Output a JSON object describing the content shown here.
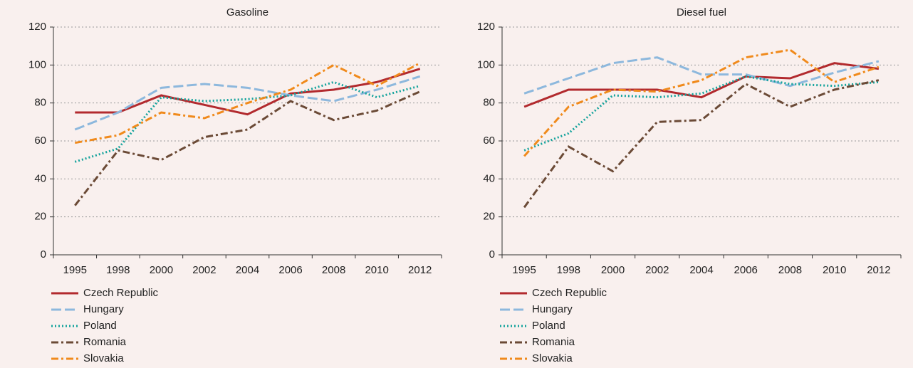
{
  "chart_data": [
    {
      "type": "line",
      "title": "Gasoline",
      "categories": [
        "1995",
        "1998",
        "2000",
        "2002",
        "2004",
        "2006",
        "2008",
        "2010",
        "2012"
      ],
      "ylim": [
        0,
        120
      ],
      "yticks": [
        0,
        20,
        40,
        60,
        80,
        100,
        120
      ],
      "grid": true,
      "series": [
        {
          "name": "Czech Republic",
          "color": "#b22a2e",
          "dash": "solid",
          "values": [
            75,
            75,
            84,
            79,
            74,
            85,
            87,
            91,
            98
          ]
        },
        {
          "name": "Hungary",
          "color": "#8db8dd",
          "dash": "dashed",
          "values": [
            66,
            75,
            88,
            90,
            88,
            84,
            81,
            87,
            94
          ]
        },
        {
          "name": "Poland",
          "color": "#14a39c",
          "dash": "dotted",
          "values": [
            49,
            56,
            83,
            81,
            82,
            84,
            91,
            83,
            89
          ]
        },
        {
          "name": "Romania",
          "color": "#6b4a36",
          "dash": "dashdot",
          "values": [
            26,
            55,
            50,
            62,
            66,
            81,
            71,
            76,
            86
          ]
        },
        {
          "name": "Slovakia",
          "color": "#f08a1c",
          "dash": "dashdot",
          "values": [
            59,
            63,
            75,
            72,
            80,
            87,
            100,
            89,
            101
          ]
        }
      ]
    },
    {
      "type": "line",
      "title": "Diesel fuel",
      "categories": [
        "1995",
        "1998",
        "2000",
        "2002",
        "2004",
        "2006",
        "2008",
        "2010",
        "2012"
      ],
      "ylim": [
        0,
        120
      ],
      "yticks": [
        0,
        20,
        40,
        60,
        80,
        100,
        120
      ],
      "grid": true,
      "series": [
        {
          "name": "Czech Republic",
          "color": "#b22a2e",
          "dash": "solid",
          "values": [
            78,
            87,
            87,
            87,
            83,
            94,
            93,
            101,
            98
          ]
        },
        {
          "name": "Hungary",
          "color": "#8db8dd",
          "dash": "dashed",
          "values": [
            85,
            93,
            101,
            104,
            95,
            95,
            89,
            96,
            102
          ]
        },
        {
          "name": "Poland",
          "color": "#14a39c",
          "dash": "dotted",
          "values": [
            55,
            64,
            84,
            83,
            85,
            94,
            90,
            89,
            91
          ]
        },
        {
          "name": "Romania",
          "color": "#6b4a36",
          "dash": "dashdot",
          "values": [
            25,
            57,
            44,
            70,
            71,
            90,
            78,
            87,
            92
          ]
        },
        {
          "name": "Slovakia",
          "color": "#f08a1c",
          "dash": "dashdot",
          "values": [
            52,
            78,
            87,
            86,
            92,
            104,
            108,
            91,
            99
          ]
        }
      ]
    }
  ]
}
